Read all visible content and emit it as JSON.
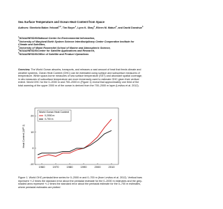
{
  "header": {
    "title": "Sea Surface Temperature and Ocean Heat Content from Space",
    "authors_label": "Authors:",
    "authors": [
      {
        "name": "Sheekela Baker-Yeboah",
        "sup": "1,2",
        "tail": ","
      },
      {
        "name": "Tim Boyer",
        "sup": "1",
        "tail": ","
      },
      {
        "name": "Lynn K. Shay",
        "sup": "3",
        "tail": ","
      },
      {
        "name": "Eileen M. Maturi",
        "sup": "4",
        "tail": ", and"
      },
      {
        "name": "David Donahue",
        "sup": "5",
        "tail": ""
      }
    ],
    "affiliations": [
      {
        "sup": "1",
        "text": "NOAA/NESDIS/National Center for Environmental Information,"
      },
      {
        "sup": "2",
        "text": "University of Maryland Earth System Science Interdisciplinary Center Cooperative Institute for Climate and Satellites,"
      },
      {
        "sup": "3",
        "text": "University of Miami Rosenstiel School of Marine and Atmospheric Science,"
      },
      {
        "sup": "4",
        "text": "NOAA/NESDIS/Center for Satellite Applications and Research,"
      },
      {
        "sup": "5",
        "text": "NOAA/NESDIS/Office of Satellite and Product Operations"
      }
    ]
  },
  "overview": {
    "lead": "Overview.",
    "text": "The World Ocean absorbs, transports, and releases a vast amount of heat that feeds climate and weather systems. Ocean Heat Content (OHC) can be estimated using surface and subsurface measures of temperature. While space-borne measures of sea surface temperature (SST) and abundant spatial coverage, in situ measures of subsurface temperature are more immensely used to estimate OHC given their vertical extent. World OHC for the 0–2000 m and 700–2000 m (Figure 1) reveal that approximately one third of the total warming of the upper 2000 m of the ocean is derived from the 700–2000 m layer (Levitus et al. 2012)."
  },
  "figure": {
    "type": "line",
    "title": "World Ocean Heat Content",
    "ylabel": "Heat Content (10²² J)",
    "x": [
      1957,
      1960,
      1965,
      1970,
      1975,
      1980,
      1985,
      1990,
      1995,
      2000,
      2005,
      2010
    ],
    "series": [
      {
        "name": "0-2000 m",
        "color": "#d62728",
        "values": [
          -6,
          -5,
          -4,
          -5,
          -3,
          -3,
          -1,
          0,
          3,
          7,
          13,
          18
        ]
      },
      {
        "name": "0-700 m",
        "color": "#222222",
        "values": [
          -4,
          -3,
          -3,
          -3,
          -2,
          -2,
          0,
          0,
          2,
          5,
          9,
          11
        ]
      }
    ],
    "xlim": [
      1955,
      2015
    ],
    "xticks": [
      1960,
      1970,
      1980,
      1990,
      2000,
      2010
    ],
    "ylim": [
      -10,
      25
    ],
    "yticks": [
      -10,
      0,
      10,
      20
    ],
    "legend": "upper-left"
  },
  "caption": "Figure 1. World OHC pentadal time series for 0–2000 m and 0–700 m (from Levitus et al. 2012). Vertical bars represent +/-2 times the standard error about the pentadal estimate for the 0–2000 m estimates and the grey-shaded area represent +/-2 times the standard error about the pentadal estimate for the 0–700 m estimates, where pentadal estimates are plotted"
}
